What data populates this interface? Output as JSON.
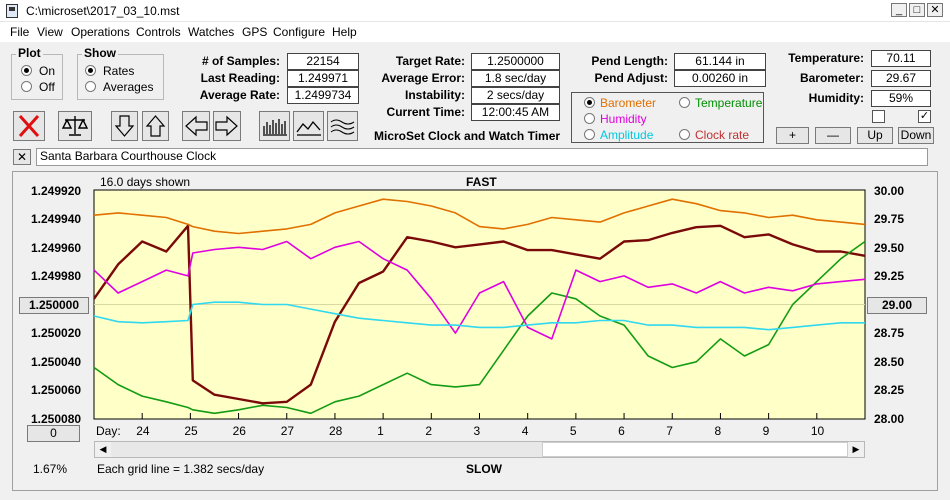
{
  "window": {
    "title": "C:\\microset\\2017_03_10.mst"
  },
  "menu": [
    "File",
    "View",
    "Operations",
    "Controls",
    "Watches",
    "GPS",
    "Configure",
    "Help"
  ],
  "plot_group": {
    "caption": "Plot",
    "on": "On",
    "off": "Off"
  },
  "show_group": {
    "caption": "Show",
    "rates": "Rates",
    "averages": "Averages"
  },
  "stats": {
    "samples_label": "# of Samples:",
    "samples": "22154",
    "last_label": "Last Reading:",
    "last": "1.249971",
    "avg_label": "Average Rate:",
    "avg": "1.2499734",
    "target_label": "Target Rate:",
    "target": "1.2500000",
    "err_label": "Average Error:",
    "err": "1.8 sec/day",
    "inst_label": "Instability:",
    "inst": "2 secs/day",
    "time_label": "Current Time:",
    "time": "12:00:45 AM",
    "pend_len_label": "Pend Length:",
    "pend_len": "61.144 in",
    "pend_adj_label": "Pend Adjust:",
    "pend_adj": "0.00260 in",
    "temp_label": "Temperature:",
    "temp": "70.11",
    "baro_label": "Barometer:",
    "baro": "29.67",
    "hum_label": "Humidity:",
    "hum": "59%"
  },
  "app_caption": "MicroSet Clock and Watch Timer",
  "sensors": {
    "barometer": "Barometer",
    "temperature": "Temperature",
    "humidity": "Humidity",
    "amplitude": "Amplitude",
    "clock_rate": "Clock rate",
    "colors": {
      "barometer": "#e07000",
      "temperature": "#009000",
      "humidity": "#e000e0",
      "amplitude": "#00c8e0",
      "clock_rate": "#c03030"
    }
  },
  "scale_buttons": {
    "plus": "+",
    "minus": "—",
    "up": "Up",
    "down": "Down"
  },
  "clock_name": "Santa Barbara Courthouse Clock",
  "close_x": "✕",
  "chart_top": {
    "days_shown": "16.0 days shown",
    "fast": "FAST"
  },
  "chart_bottom": {
    "percent": "1.67%",
    "grid_note": "Each grid line = 1.382 secs/day",
    "slow": "SLOW",
    "zero_btn": "0",
    "center_left": "1.250000",
    "center_right": "29.00"
  },
  "chart_data": {
    "type": "line",
    "x_label": "Day:",
    "x_ticks": [
      "24",
      "25",
      "26",
      "27",
      "28",
      "1",
      "2",
      "3",
      "4",
      "5",
      "6",
      "7",
      "8",
      "9",
      "10"
    ],
    "y_left_ticks": [
      "1.249920",
      "1.249940",
      "1.249960",
      "1.249980",
      "1.250000",
      "1.250020",
      "1.250040",
      "1.250060",
      "1.250080"
    ],
    "y_right_ticks": [
      "30.00",
      "29.75",
      "29.50",
      "29.25",
      "29.00",
      "28.75",
      "28.50",
      "28.25",
      "28.00"
    ],
    "ylim_left": [
      1.24992,
      1.25008
    ],
    "ylim_right": [
      28.0,
      30.0
    ],
    "x": [
      23,
      23.5,
      24,
      24.5,
      24.95,
      25.05,
      25.5,
      26,
      26.5,
      27,
      27.5,
      28,
      28.5,
      29,
      29.5,
      30,
      30.5,
      31,
      31.5,
      32,
      32.5,
      33,
      33.5,
      34,
      34.5,
      35,
      35.5,
      36,
      36.5,
      37,
      37.5,
      38,
      38.5,
      39
    ],
    "series": [
      {
        "name": "Clock rate",
        "color": "#7a0a0a",
        "axis": "left",
        "values": [
          1.249996,
          1.249972,
          1.249956,
          1.249963,
          1.249945,
          1.250053,
          1.250063,
          1.250066,
          1.250069,
          1.250068,
          1.250056,
          1.250012,
          1.249985,
          1.249977,
          1.249953,
          1.249956,
          1.24996,
          1.249958,
          1.249956,
          1.249962,
          1.249962,
          1.249965,
          1.249968,
          1.249956,
          1.249955,
          1.24995,
          1.249946,
          1.249945,
          1.249953,
          1.249951,
          1.249958,
          1.249963,
          1.249963,
          1.249966
        ]
      },
      {
        "name": "Barometer",
        "color": "#e07000",
        "axis": "right",
        "values": [
          29.78,
          29.8,
          29.78,
          29.76,
          29.7,
          29.68,
          29.64,
          29.62,
          29.64,
          29.66,
          29.7,
          29.8,
          29.86,
          29.92,
          29.9,
          29.86,
          29.8,
          29.68,
          29.66,
          29.7,
          29.76,
          29.74,
          29.72,
          29.8,
          29.86,
          29.92,
          29.88,
          29.82,
          29.8,
          29.76,
          29.78,
          29.74,
          29.72,
          29.7
        ]
      },
      {
        "name": "Temperature",
        "color": "#139c13",
        "axis": "right",
        "values": [
          28.45,
          28.3,
          28.2,
          28.15,
          28.1,
          28.08,
          28.05,
          28.08,
          28.12,
          28.1,
          28.05,
          28.15,
          28.2,
          28.3,
          28.4,
          28.3,
          28.28,
          28.3,
          28.6,
          28.9,
          29.1,
          29.05,
          28.9,
          28.82,
          28.55,
          28.45,
          28.5,
          28.7,
          28.55,
          28.65,
          29.0,
          29.2,
          29.4,
          29.55
        ]
      },
      {
        "name": "Humidity",
        "color": "#e000e0",
        "axis": "right",
        "values": [
          29.3,
          29.1,
          29.2,
          29.3,
          29.25,
          29.45,
          29.48,
          29.5,
          29.48,
          29.55,
          29.4,
          29.5,
          29.55,
          29.4,
          29.3,
          29.05,
          28.75,
          29.1,
          29.2,
          28.8,
          28.7,
          29.3,
          29.2,
          29.25,
          29.15,
          29.18,
          29.1,
          29.2,
          29.1,
          29.15,
          29.12,
          29.18,
          29.2,
          29.22
        ]
      },
      {
        "name": "Amplitude",
        "color": "#30d8f0",
        "axis": "right",
        "values": [
          28.9,
          28.85,
          28.84,
          28.85,
          28.86,
          29.0,
          29.02,
          29.02,
          29.0,
          29.0,
          28.96,
          28.92,
          28.88,
          28.86,
          28.84,
          28.82,
          28.82,
          28.8,
          28.8,
          28.82,
          28.84,
          28.84,
          28.86,
          28.86,
          28.82,
          28.82,
          28.8,
          28.8,
          28.8,
          28.78,
          28.8,
          28.82,
          28.84,
          28.84
        ]
      }
    ]
  }
}
